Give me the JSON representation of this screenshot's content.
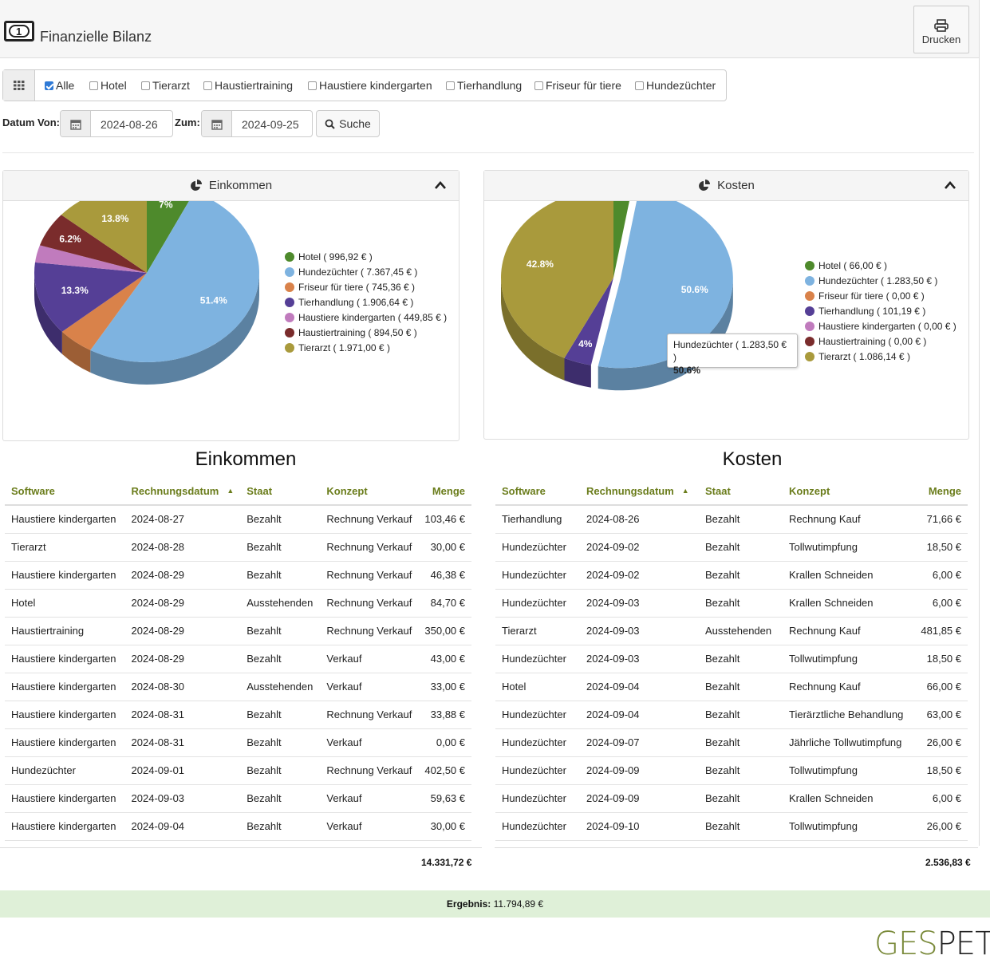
{
  "header": {
    "title": "Finanzielle Bilanz",
    "print_label": "Drucken"
  },
  "filters": {
    "items": [
      {
        "label": "Alle",
        "checked": true
      },
      {
        "label": "Hotel",
        "checked": false
      },
      {
        "label": "Tierarzt",
        "checked": false
      },
      {
        "label": "Haustiertraining",
        "checked": false
      },
      {
        "label": "Haustiere kindergarten",
        "checked": false
      },
      {
        "label": "Tierhandlung",
        "checked": false
      },
      {
        "label": "Friseur für tiere",
        "checked": false
      },
      {
        "label": "Hundezüchter",
        "checked": false
      }
    ]
  },
  "dates": {
    "from_label": "Datum Von:",
    "from_value": "2024-08-26",
    "to_label": "Zum:",
    "to_value": "2024-09-25",
    "search_label": "Suche"
  },
  "colors": {
    "hotel": "#4e8a2c",
    "hundezuechter": "#7eb3e0",
    "friseur": "#d9824a",
    "tierhandlung": "#553f96",
    "kindergarten": "#c07bbd",
    "haustiertraining": "#7a2c2c",
    "tierarzt": "#a99a3c",
    "accent": "#6b7d1c",
    "result_bg": "#dff0d8"
  },
  "chart_data": [
    {
      "type": "pie",
      "title": "Einkommen",
      "categories": [
        "Hotel",
        "Hundezüchter",
        "Friseur für tiere",
        "Tierhandlung",
        "Haustiere kindergarten",
        "Haustiertraining",
        "Tierarzt"
      ],
      "values": [
        996.92,
        7367.45,
        745.36,
        1906.64,
        449.85,
        894.5,
        1971.0
      ],
      "legend": [
        "Hotel ( 996,92 € )",
        "Hundezüchter ( 7.367,45 € )",
        "Friseur für tiere ( 745,36 € )",
        "Tierhandlung ( 1.906,64 € )",
        "Haustiere kindergarten ( 449,85 € )",
        "Haustiertraining ( 894,50 € )",
        "Tierarzt ( 1.971,00 € )"
      ],
      "data_labels": [
        "7%",
        "51.4%",
        "",
        "13.3%",
        "",
        "6.2%",
        "13.8%"
      ]
    },
    {
      "type": "pie",
      "title": "Kosten",
      "categories": [
        "Hotel",
        "Hundezüchter",
        "Friseur für tiere",
        "Tierhandlung",
        "Haustiere kindergarten",
        "Haustiertraining",
        "Tierarzt"
      ],
      "values": [
        66.0,
        1283.5,
        0.0,
        101.19,
        0.0,
        0.0,
        1086.14
      ],
      "legend": [
        "Hotel ( 66,00 € )",
        "Hundezüchter ( 1.283,50 € )",
        "Friseur für tiere ( 0,00 € )",
        "Tierhandlung ( 101,19 € )",
        "Haustiere kindergarten ( 0,00 € )",
        "Haustiertraining ( 0,00 € )",
        "Tierarzt ( 1.086,14 € )"
      ],
      "data_labels": [
        "",
        "50.6%",
        "",
        "4%",
        "",
        "",
        "42.8%"
      ],
      "tooltip": {
        "label": "Hundezüchter ( 1.283,50 € )",
        "value": "50.6%"
      }
    }
  ],
  "income_table": {
    "title": "Einkommen",
    "headers": [
      "Software",
      "Rechnungsdatum",
      "Staat",
      "Konzept",
      "Menge"
    ],
    "rows": [
      [
        "Haustiere kindergarten",
        "2024-08-27",
        "Bezahlt",
        "Rechnung Verkauf",
        "103,46 €"
      ],
      [
        "Tierarzt",
        "2024-08-28",
        "Bezahlt",
        "Rechnung Verkauf",
        "30,00 €"
      ],
      [
        "Haustiere kindergarten",
        "2024-08-29",
        "Bezahlt",
        "Rechnung Verkauf",
        "46,38 €"
      ],
      [
        "Hotel",
        "2024-08-29",
        "Ausstehenden",
        "Rechnung Verkauf",
        "84,70 €"
      ],
      [
        "Haustiertraining",
        "2024-08-29",
        "Bezahlt",
        "Rechnung Verkauf",
        "350,00 €"
      ],
      [
        "Haustiere kindergarten",
        "2024-08-29",
        "Bezahlt",
        "Verkauf",
        "43,00 €"
      ],
      [
        "Haustiere kindergarten",
        "2024-08-30",
        "Ausstehenden",
        "Verkauf",
        "33,00 €"
      ],
      [
        "Haustiere kindergarten",
        "2024-08-31",
        "Bezahlt",
        "Rechnung Verkauf",
        "33,88 €"
      ],
      [
        "Haustiere kindergarten",
        "2024-08-31",
        "Bezahlt",
        "Verkauf",
        "0,00 €"
      ],
      [
        "Hundezüchter",
        "2024-09-01",
        "Bezahlt",
        "Rechnung Verkauf",
        "402,50 €"
      ],
      [
        "Haustiere kindergarten",
        "2024-09-03",
        "Bezahlt",
        "Verkauf",
        "59,63 €"
      ],
      [
        "Haustiere kindergarten",
        "2024-09-04",
        "Bezahlt",
        "Verkauf",
        "30,00 €"
      ]
    ],
    "total": "14.331,72 €"
  },
  "cost_table": {
    "title": "Kosten",
    "headers": [
      "Software",
      "Rechnungsdatum",
      "Staat",
      "Konzept",
      "Menge"
    ],
    "rows": [
      [
        "Tierhandlung",
        "2024-08-26",
        "Bezahlt",
        "Rechnung Kauf",
        "71,66 €"
      ],
      [
        "Hundezüchter",
        "2024-09-02",
        "Bezahlt",
        "Tollwutimpfung",
        "18,50 €"
      ],
      [
        "Hundezüchter",
        "2024-09-02",
        "Bezahlt",
        "Krallen Schneiden",
        "6,00 €"
      ],
      [
        "Hundezüchter",
        "2024-09-03",
        "Bezahlt",
        "Krallen Schneiden",
        "6,00 €"
      ],
      [
        "Tierarzt",
        "2024-09-03",
        "Ausstehenden",
        "Rechnung Kauf",
        "481,85 €"
      ],
      [
        "Hundezüchter",
        "2024-09-03",
        "Bezahlt",
        "Tollwutimpfung",
        "18,50 €"
      ],
      [
        "Hotel",
        "2024-09-04",
        "Bezahlt",
        "Rechnung Kauf",
        "66,00 €"
      ],
      [
        "Hundezüchter",
        "2024-09-04",
        "Bezahlt",
        "Tierärztliche Behandlung",
        "63,00 €"
      ],
      [
        "Hundezüchter",
        "2024-09-07",
        "Bezahlt",
        "Jährliche Tollwutimpfung",
        "26,00 €"
      ],
      [
        "Hundezüchter",
        "2024-09-09",
        "Bezahlt",
        "Tollwutimpfung",
        "18,50 €"
      ],
      [
        "Hundezüchter",
        "2024-09-09",
        "Bezahlt",
        "Krallen Schneiden",
        "6,00 €"
      ],
      [
        "Hundezüchter",
        "2024-09-10",
        "Bezahlt",
        "Tollwutimpfung",
        "26,00 €"
      ]
    ],
    "total": "2.536,83 €"
  },
  "result": {
    "label": "Ergebnis:",
    "value": "11.794,89 €"
  },
  "logo": {
    "part1": "GES",
    "part2": "PET"
  }
}
